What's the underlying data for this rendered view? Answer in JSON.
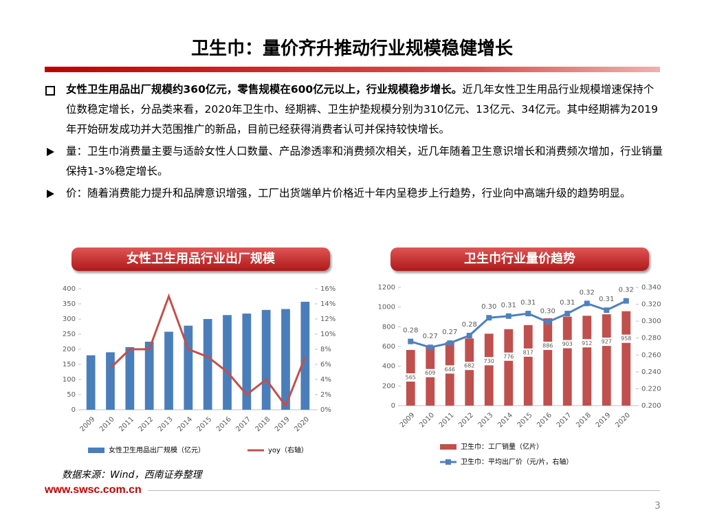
{
  "header": {
    "title": "卫生巾：量价齐升推动行业规模稳健增长"
  },
  "bullets": [
    {
      "bold": "女性卫生用品出厂规模约360亿元，零售规模在600亿元以上，行业规模稳步增长。",
      "text": "近几年女性卫生用品行业规模增速保持个位数稳定增长，分品类来看，2020年卫生巾、经期裤、卫生护垫规模分别为310亿元、13亿元、34亿元。其中经期裤为2019年开始研发成功并大范围推广的新品，目前已经获得消费者认可并保持较快增长。"
    },
    {
      "text": "量：卫生巾消费量主要与适龄女性人口数量、产品渗透率和消费频次相关，近几年随着卫生意识增长和消费频次增加，行业销量保持1-3%稳定增长。"
    },
    {
      "text": "价：随着消费能力提升和品牌意识增强，工厂出货端单片价格近十年内呈稳步上行趋势，行业向中高端升级的趋势明显。"
    }
  ],
  "chart_data": [
    {
      "type": "combo",
      "title": "女性卫生用品行业出厂规模",
      "categories": [
        "2009",
        "2010",
        "2011",
        "2012",
        "2013",
        "2014",
        "2015",
        "2016",
        "2017",
        "2018",
        "2019",
        "2020"
      ],
      "series": [
        {
          "name": "女性卫生用品出厂规模（亿元）",
          "type": "bar",
          "color": "#4a7ebb",
          "values": [
            180,
            190,
            207,
            225,
            258,
            278,
            300,
            313,
            318,
            330,
            333,
            357
          ]
        },
        {
          "name": "yoy（右轴）",
          "type": "line",
          "axis": "y2",
          "color": "#c0504d",
          "values": [
            null,
            5.5,
            8,
            8,
            15,
            8,
            7,
            5,
            2,
            4,
            0.5,
            7
          ]
        }
      ],
      "ylim": [
        0,
        400
      ],
      "yticks": [
        0,
        50,
        100,
        150,
        200,
        250,
        300,
        350,
        400
      ],
      "y2lim": [
        0,
        16
      ],
      "y2ticks": [
        {
          "value": 0,
          "label": "0%"
        },
        {
          "value": 2,
          "label": "2%"
        },
        {
          "value": 4,
          "label": "4%"
        },
        {
          "value": 6,
          "label": "6%"
        },
        {
          "value": 8,
          "label": "8%"
        },
        {
          "value": 10,
          "label": "10%"
        },
        {
          "value": 12,
          "label": "12%"
        },
        {
          "value": 14,
          "label": "14%"
        },
        {
          "value": 16,
          "label": "16%"
        }
      ],
      "legend": "bottom-row"
    },
    {
      "type": "combo",
      "title": "卫生巾行业量价趋势",
      "categories": [
        "2009",
        "2010",
        "2011",
        "2012",
        "2013",
        "2014",
        "2015",
        "2016",
        "2017",
        "2018",
        "2019",
        "2020"
      ],
      "series": [
        {
          "name": "卫生巾：工厂销量（亿片）",
          "type": "bar",
          "color": "#c0504d",
          "values": [
            565,
            609,
            646,
            682,
            730,
            776,
            817,
            886,
            903,
            912,
            927,
            958
          ],
          "data_labels": true
        },
        {
          "name": "卫生巾：平均出厂价（元/片，右轴）",
          "type": "line",
          "axis": "y2",
          "color": "#4f81bd",
          "markers": true,
          "data_labels": true,
          "values": [
            0.276,
            0.269,
            0.274,
            0.283,
            0.304,
            0.306,
            0.309,
            0.299,
            0.309,
            0.321,
            0.313,
            0.324
          ],
          "value_labels": [
            "0.28",
            "0.27",
            "0.27",
            "0.28",
            "0.30",
            "0.31",
            "0.31",
            "0.30",
            "0.31",
            "0.32",
            "0.31",
            "0.32"
          ]
        }
      ],
      "ylim": [
        0,
        1200
      ],
      "yticks": [
        0,
        200,
        400,
        600,
        800,
        1000,
        1200
      ],
      "y2lim": [
        0.2,
        0.34
      ],
      "y2ticks": [
        {
          "value": 0.2,
          "label": "0.200"
        },
        {
          "value": 0.22,
          "label": "0.220"
        },
        {
          "value": 0.24,
          "label": "0.240"
        },
        {
          "value": 0.26,
          "label": "0.260"
        },
        {
          "value": 0.28,
          "label": "0.280"
        },
        {
          "value": 0.3,
          "label": "0.300"
        },
        {
          "value": 0.32,
          "label": "0.320"
        },
        {
          "value": 0.34,
          "label": "0.340"
        }
      ],
      "legend": "bottom-column"
    }
  ],
  "source": "数据来源：Wind，西南证券整理",
  "footer": {
    "url": "www.swsc.com.cn",
    "page": "3"
  }
}
